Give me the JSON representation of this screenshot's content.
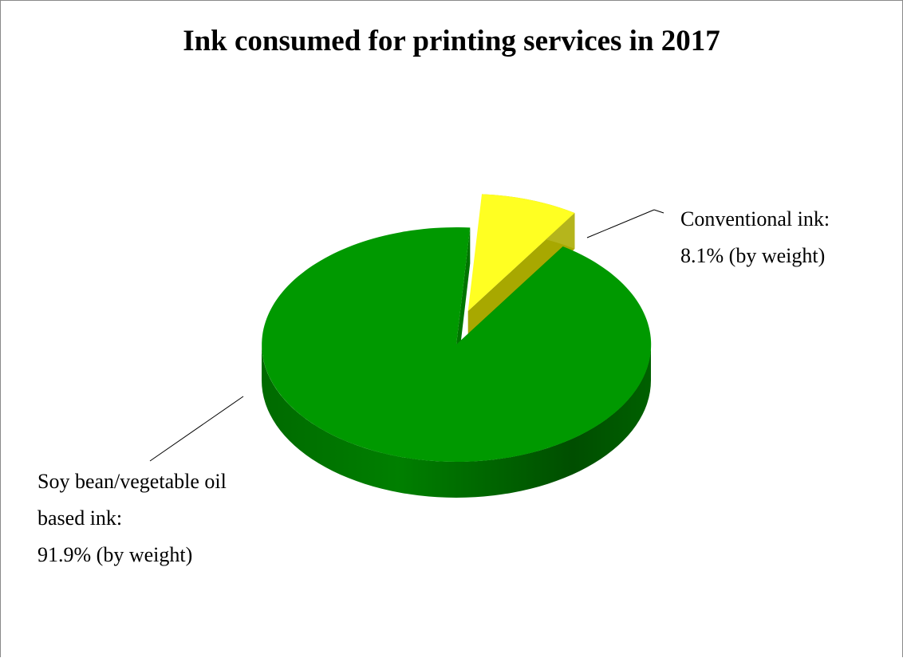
{
  "chart_data": {
    "type": "pie",
    "style": "3d-exploded",
    "title": "Ink consumed for printing services in 2017",
    "slices": [
      {
        "label_line1": "Soy bean/vegetable oil",
        "label_line2": "based ink:",
        "label_line3": "91.9% (by weight)",
        "category": "Soy bean/vegetable oil based ink",
        "value": 91.9,
        "unit": "% (by weight)",
        "color": "#009900"
      },
      {
        "label_line1": "Conventional ink:",
        "label_line2": "8.1% (by weight)",
        "category": "Conventional ink",
        "value": 8.1,
        "unit": "% (by weight)",
        "color": "#ffff22"
      }
    ]
  }
}
